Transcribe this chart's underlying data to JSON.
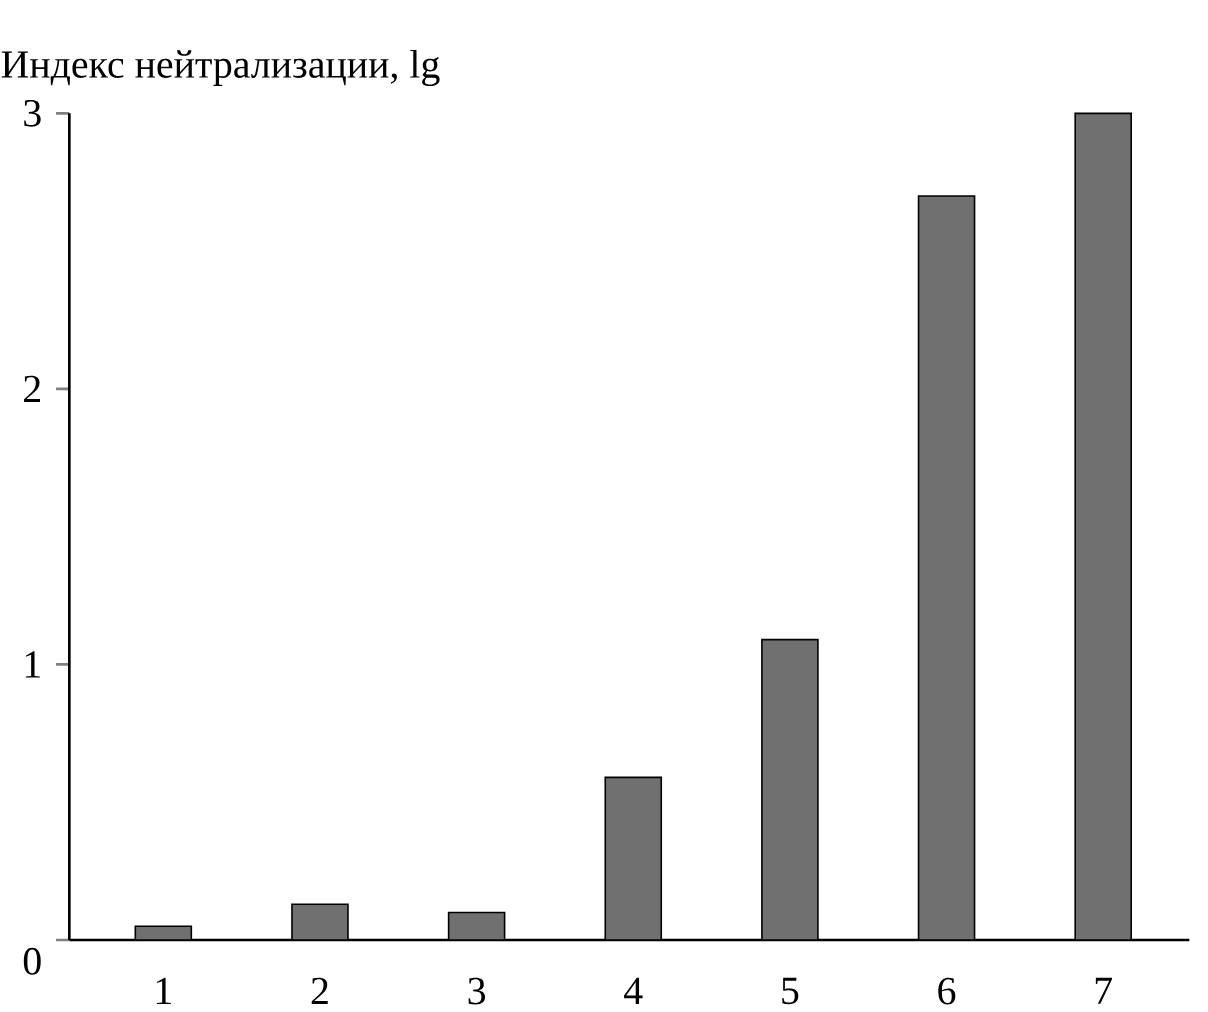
{
  "chart_data": {
    "type": "bar",
    "ylabel": "Индекс нейтрализации, lg",
    "categories": [
      "1",
      "2",
      "3",
      "4",
      "5",
      "6",
      "7"
    ],
    "values": [
      0.05,
      0.13,
      0.1,
      0.59,
      1.09,
      2.7,
      3.0
    ],
    "color": "#707070",
    "ylim": [
      0,
      3
    ],
    "yticks": [
      0,
      1,
      2,
      3
    ]
  }
}
